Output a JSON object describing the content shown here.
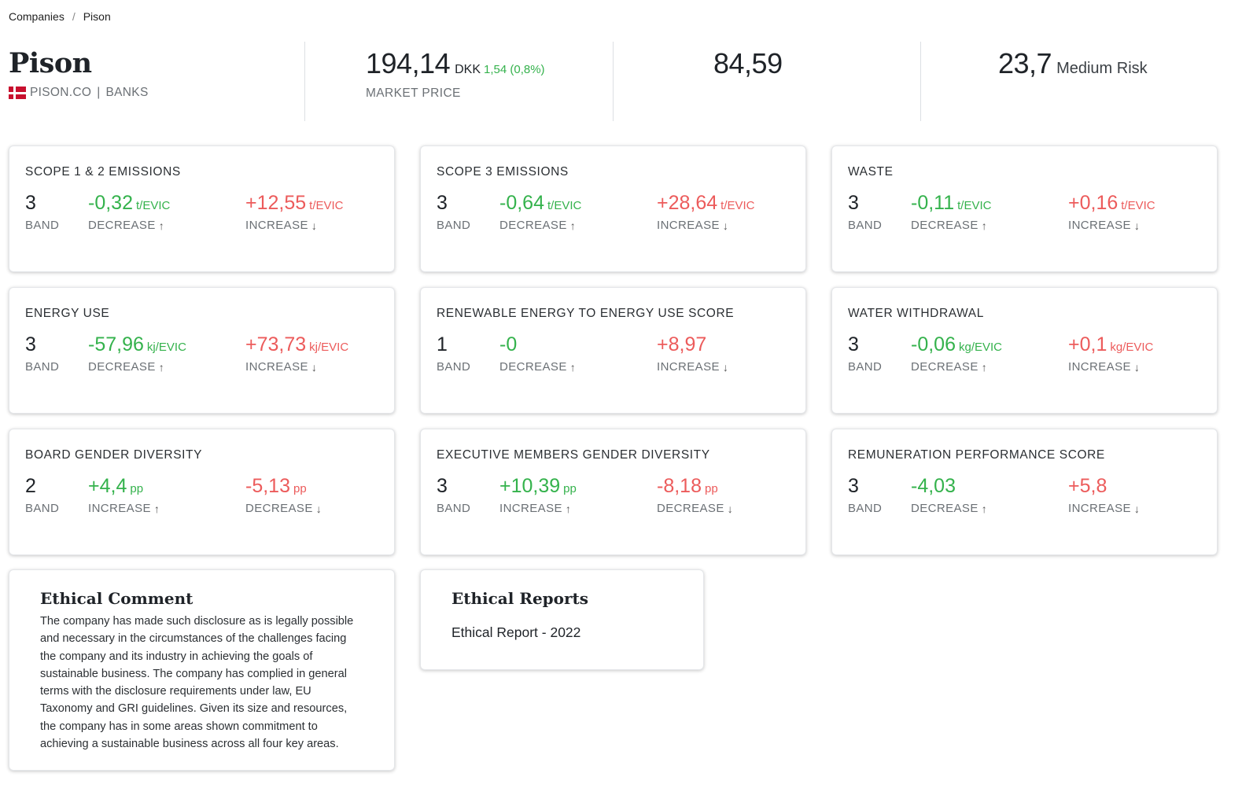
{
  "breadcrumb": {
    "items": [
      "Companies",
      "Pison"
    ],
    "separator": "/"
  },
  "company": {
    "name": "Pison",
    "ticker": "PISON.CO",
    "sector": "BANKS",
    "flag": "denmark-flag-icon"
  },
  "market": {
    "price": "194,14",
    "currency": "DKK",
    "change": "1,54 (0,8%)",
    "label": "MARKET PRICE"
  },
  "score": {
    "value": "84,59"
  },
  "risk": {
    "value": "23,7",
    "label": "Medium Risk"
  },
  "metrics": [
    {
      "title": "SCOPE 1 & 2 EMISSIONS",
      "band": "3",
      "band_label": "BAND",
      "a_value": "-0,32",
      "a_unit": "t/EVIC",
      "a_label": "DECREASE",
      "a_arrow": "arrow-up-icon",
      "b_value": "+12,55",
      "b_unit": "t/EVIC",
      "b_label": "INCREASE",
      "b_arrow": "arrow-down-icon"
    },
    {
      "title": "SCOPE 3 EMISSIONS",
      "band": "3",
      "band_label": "BAND",
      "a_value": "-0,64",
      "a_unit": "t/EVIC",
      "a_label": "DECREASE",
      "a_arrow": "arrow-up-icon",
      "b_value": "+28,64",
      "b_unit": "t/EVIC",
      "b_label": "INCREASE",
      "b_arrow": "arrow-down-icon"
    },
    {
      "title": "WASTE",
      "band": "3",
      "band_label": "BAND",
      "a_value": "-0,11",
      "a_unit": "t/EVIC",
      "a_label": "DECREASE",
      "a_arrow": "arrow-up-icon",
      "b_value": "+0,16",
      "b_unit": "t/EVIC",
      "b_label": "INCREASE",
      "b_arrow": "arrow-down-icon"
    },
    {
      "title": "ENERGY USE",
      "band": "3",
      "band_label": "BAND",
      "a_value": "-57,96",
      "a_unit": "kj/EVIC",
      "a_label": "DECREASE",
      "a_arrow": "arrow-up-icon",
      "b_value": "+73,73",
      "b_unit": "kj/EVIC",
      "b_label": "INCREASE",
      "b_arrow": "arrow-down-icon"
    },
    {
      "title": "RENEWABLE ENERGY TO ENERGY USE SCORE",
      "band": "1",
      "band_label": "BAND",
      "a_value": "-0",
      "a_unit": "",
      "a_label": "DECREASE",
      "a_arrow": "arrow-up-icon",
      "b_value": "+8,97",
      "b_unit": "",
      "b_label": "INCREASE",
      "b_arrow": "arrow-down-icon"
    },
    {
      "title": "WATER WITHDRAWAL",
      "band": "3",
      "band_label": "BAND",
      "a_value": "-0,06",
      "a_unit": "kg/EVIC",
      "a_label": "DECREASE",
      "a_arrow": "arrow-up-icon",
      "b_value": "+0,1",
      "b_unit": "kg/EVIC",
      "b_label": "INCREASE",
      "b_arrow": "arrow-down-icon"
    },
    {
      "title": "BOARD GENDER DIVERSITY",
      "band": "2",
      "band_label": "BAND",
      "a_value": "+4,4",
      "a_unit": "pp",
      "a_label": "INCREASE",
      "a_arrow": "arrow-up-icon",
      "b_value": "-5,13",
      "b_unit": "pp",
      "b_label": "DECREASE",
      "b_arrow": "arrow-down-icon"
    },
    {
      "title": "EXECUTIVE MEMBERS GENDER DIVERSITY",
      "band": "3",
      "band_label": "BAND",
      "a_value": "+10,39",
      "a_unit": "pp",
      "a_label": "INCREASE",
      "a_arrow": "arrow-up-icon",
      "b_value": "-8,18",
      "b_unit": "pp",
      "b_label": "DECREASE",
      "b_arrow": "arrow-down-icon"
    },
    {
      "title": "REMUNERATION PERFORMANCE SCORE",
      "band": "3",
      "band_label": "BAND",
      "a_value": "-4,03",
      "a_unit": "",
      "a_label": "DECREASE",
      "a_arrow": "arrow-up-icon",
      "b_value": "+5,8",
      "b_unit": "",
      "b_label": "INCREASE",
      "b_arrow": "arrow-down-icon"
    }
  ],
  "ethical_comment": {
    "title": "Ethical Comment",
    "lines": [
      "The company has made such disclosure as is legally possible",
      "and necessary in the circumstances of the challenges facing",
      "the company and its industry in achieving the goals of",
      "sustainable business. The company has complied in general",
      "terms with the disclosure requirements under law, EU",
      "Taxonomy and GRI guidelines. Given its size and resources,",
      "the company has in some areas shown commitment to",
      "achieving a sustainable business across all four key areas."
    ]
  },
  "ethical_reports": {
    "title": "Ethical Reports",
    "items": [
      "Ethical Report - 2022"
    ]
  },
  "colors": {
    "positive": "#34b24c",
    "negative": "#ec5b5b",
    "muted": "#6b7075",
    "text": "#1f2328"
  }
}
